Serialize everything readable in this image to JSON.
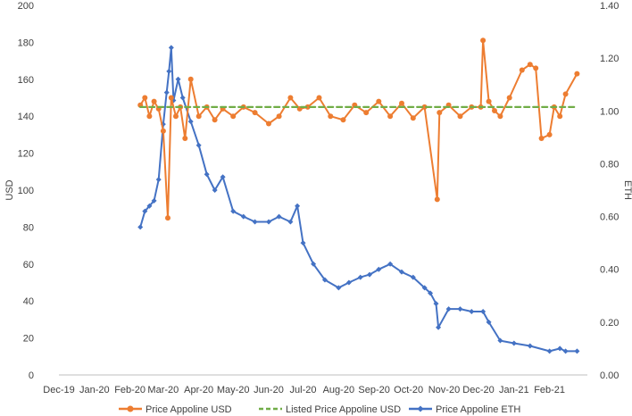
{
  "chart_data": {
    "type": "line",
    "title": "",
    "ylabel_left": "USD",
    "ylabel_right": "ETH",
    "xlabel": "",
    "x_ticks": [
      "Dec-19",
      "Jan-20",
      "Feb-20",
      "Mar-20",
      "Apr-20",
      "May-20",
      "Jun-20",
      "Jul-20",
      "Aug-20",
      "Sep-20",
      "Oct-20",
      "Nov-20",
      "Dec-20",
      "Jan-21",
      "Feb-21"
    ],
    "y_left_ticks": [
      "0",
      "20",
      "40",
      "60",
      "80",
      "100",
      "120",
      "140",
      "160",
      "180",
      "200"
    ],
    "y_right_ticks": [
      "0.00",
      "0.20",
      "0.40",
      "0.60",
      "0.80",
      "1.00",
      "1.20",
      "1.40"
    ],
    "ylim_left": [
      0,
      200
    ],
    "ylim_right": [
      0,
      1.4
    ],
    "grid": false,
    "legend_position": "bottom",
    "colors": {
      "usd": "#ED7D31",
      "listed": "#70AD47",
      "eth": "#4472C4",
      "axis": "#bfbfbf"
    },
    "series": [
      {
        "name": "Price Appoline USD",
        "axis": "left",
        "x": [
          "2020-02-10",
          "2020-02-14",
          "2020-02-18",
          "2020-02-22",
          "2020-02-26",
          "2020-03-01",
          "2020-03-05",
          "2020-03-08",
          "2020-03-12",
          "2020-03-16",
          "2020-03-20",
          "2020-03-25",
          "2020-04-01",
          "2020-04-08",
          "2020-04-15",
          "2020-04-22",
          "2020-05-01",
          "2020-05-10",
          "2020-05-20",
          "2020-06-01",
          "2020-06-10",
          "2020-06-20",
          "2020-06-28",
          "2020-07-05",
          "2020-07-15",
          "2020-07-25",
          "2020-08-05",
          "2020-08-15",
          "2020-08-25",
          "2020-09-05",
          "2020-09-15",
          "2020-09-25",
          "2020-10-05",
          "2020-10-15",
          "2020-10-26",
          "2020-10-28",
          "2020-11-05",
          "2020-11-15",
          "2020-11-25",
          "2020-12-03",
          "2020-12-05",
          "2020-12-10",
          "2020-12-15",
          "2020-12-20",
          "2020-12-28",
          "2021-01-08",
          "2021-01-15",
          "2021-01-20",
          "2021-01-25",
          "2021-02-01",
          "2021-02-05",
          "2021-02-10",
          "2021-02-15",
          "2021-02-25"
        ],
        "values": [
          146,
          150,
          140,
          148,
          144,
          132,
          85,
          150,
          140,
          145,
          128,
          160,
          140,
          145,
          138,
          144,
          140,
          145,
          142,
          136,
          140,
          150,
          144,
          145,
          150,
          140,
          138,
          146,
          142,
          148,
          140,
          147,
          139,
          145,
          95,
          142,
          146,
          140,
          145,
          145,
          181,
          148,
          143,
          140,
          150,
          165,
          168,
          166,
          128,
          130,
          145,
          140,
          152,
          163
        ]
      },
      {
        "name": "Listed Price Appoline USD",
        "axis": "left",
        "x": [
          "2020-02-10",
          "2021-02-25"
        ],
        "values": [
          145,
          145
        ]
      },
      {
        "name": "Price Appoline ETH",
        "axis": "right",
        "x": [
          "2020-02-10",
          "2020-02-14",
          "2020-02-18",
          "2020-02-22",
          "2020-02-26",
          "2020-03-01",
          "2020-03-04",
          "2020-03-06",
          "2020-03-08",
          "2020-03-10",
          "2020-03-14",
          "2020-03-18",
          "2020-03-25",
          "2020-04-01",
          "2020-04-08",
          "2020-04-15",
          "2020-04-22",
          "2020-05-01",
          "2020-05-10",
          "2020-05-20",
          "2020-06-01",
          "2020-06-10",
          "2020-06-20",
          "2020-06-26",
          "2020-07-01",
          "2020-07-10",
          "2020-07-20",
          "2020-08-01",
          "2020-08-10",
          "2020-08-20",
          "2020-08-28",
          "2020-09-05",
          "2020-09-15",
          "2020-09-25",
          "2020-10-05",
          "2020-10-15",
          "2020-10-20",
          "2020-10-25",
          "2020-10-27",
          "2020-11-05",
          "2020-11-15",
          "2020-11-25",
          "2020-12-05",
          "2020-12-10",
          "2020-12-20",
          "2021-01-01",
          "2021-01-15",
          "2021-02-01",
          "2021-02-10",
          "2021-02-15",
          "2021-02-25"
        ],
        "values": [
          0.56,
          0.62,
          0.64,
          0.66,
          0.74,
          0.95,
          1.07,
          1.15,
          1.24,
          1.04,
          1.12,
          1.05,
          0.96,
          0.87,
          0.76,
          0.7,
          0.75,
          0.62,
          0.6,
          0.58,
          0.58,
          0.6,
          0.58,
          0.64,
          0.5,
          0.42,
          0.36,
          0.33,
          0.35,
          0.37,
          0.38,
          0.4,
          0.42,
          0.39,
          0.37,
          0.33,
          0.31,
          0.27,
          0.18,
          0.25,
          0.25,
          0.24,
          0.24,
          0.2,
          0.13,
          0.12,
          0.11,
          0.09,
          0.1,
          0.09,
          0.09
        ]
      }
    ]
  }
}
